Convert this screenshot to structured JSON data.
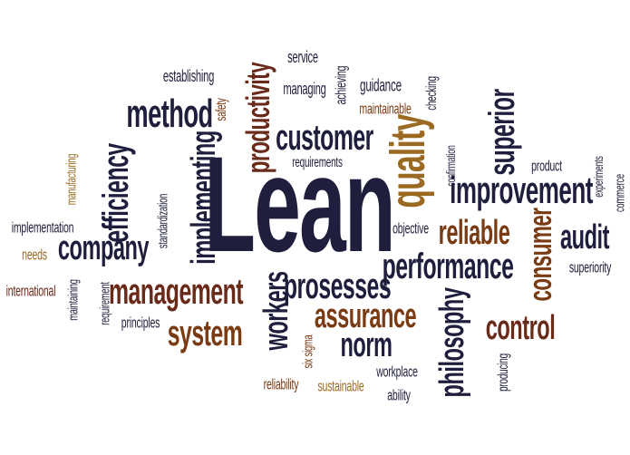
{
  "words": {
    "lean": "Lean",
    "quality": "quality",
    "customer": "customer",
    "improvement": "improvement",
    "management": "management",
    "performance": "performance",
    "prosesses": "prosesses",
    "assurance": "assurance",
    "company": "company",
    "method": "method",
    "system": "system",
    "efficiency": "efficiency",
    "implementing": "implementing",
    "productivity": "productivity",
    "reliable": "reliable",
    "audit": "audit",
    "consumer": "consumer",
    "superior": "superior",
    "control": "control",
    "norm": "norm",
    "workers": "workers",
    "philosophy": "philosophy",
    "service": "service",
    "managing": "managing",
    "achieving": "achieving",
    "guidance": "guidance",
    "establishing": "establishing",
    "safety": "safety",
    "maintainable": "maintainable",
    "checking": "checking",
    "requirements": "requirements",
    "confirmation": "confirmation",
    "product": "product",
    "experiments": "experiments",
    "commerce": "commerce",
    "manufacturing": "manufacturing",
    "standardization": "standardization",
    "implementation": "implementation",
    "needs": "needs",
    "objective": "objective",
    "superiority": "superiority",
    "international": "international",
    "maintaining": "maintaining",
    "requirement": "requirement",
    "principles": "principles",
    "six_sigma": "six sigma",
    "producing": "producing",
    "workplace": "workplace",
    "reliability": "reliability",
    "sustainable": "sustainable",
    "ability": "ability"
  },
  "colors": {
    "navy": "#1f1f3d",
    "brown": "#7a3a12",
    "orange": "#9a6a22",
    "dark_red": "#6a2a1a",
    "gray": "#3a3a3a"
  }
}
